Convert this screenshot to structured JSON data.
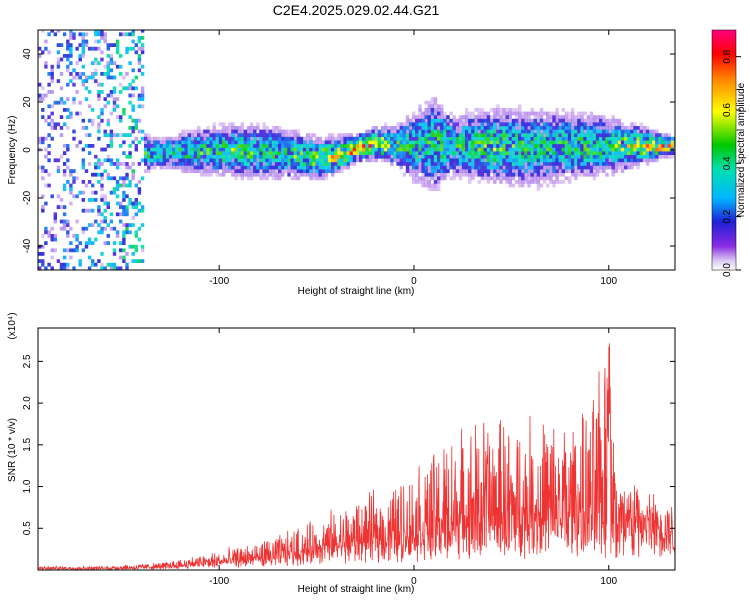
{
  "figure_title": "C2E4.2025.029.02.44.G21",
  "chart_data": [
    {
      "type": "heatmap",
      "xlabel": "Height of straight line (km)",
      "ylabel": "Frequency (Hz)",
      "xlim": [
        -193,
        134
      ],
      "ylim": [
        -50,
        50
      ],
      "x_ticks": [
        -100,
        0,
        100
      ],
      "y_ticks": [
        -40,
        -20,
        0,
        20,
        40
      ],
      "colorbar": {
        "label": "Normalized spectral amplitude",
        "range": [
          0.0,
          0.9
        ],
        "ticks": [
          0.0,
          0.2,
          0.4,
          0.6,
          0.8
        ]
      },
      "ridge_profile": {
        "x": [
          -193,
          -170,
          -150,
          -130,
          -110,
          -90,
          -70,
          -50,
          -40,
          -30,
          -20,
          -10,
          0,
          10,
          20,
          40,
          60,
          80,
          100,
          120,
          134
        ],
        "center_freq_hz": [
          0,
          -1,
          -2,
          -2,
          -1,
          -1,
          -2,
          -4,
          -3,
          0,
          2,
          1,
          1,
          2,
          1,
          1,
          0,
          1,
          1,
          1,
          1
        ],
        "half_width_hz": [
          45,
          30,
          8,
          6,
          9,
          10,
          10,
          8,
          7,
          5,
          6,
          8,
          14,
          18,
          12,
          14,
          15,
          13,
          11,
          6,
          3
        ],
        "peak_amplitude": [
          0.25,
          0.35,
          0.5,
          0.45,
          0.5,
          0.55,
          0.45,
          0.6,
          0.7,
          0.85,
          0.75,
          0.5,
          0.45,
          0.5,
          0.45,
          0.55,
          0.45,
          0.5,
          0.5,
          0.75,
          0.8
        ]
      }
    },
    {
      "type": "line",
      "xlabel": "Height of straight line (km)",
      "ylabel": "SNR (10 * v/v)",
      "y_scale_label": "(x10⁴)",
      "xlim": [
        -193,
        134
      ],
      "ylim": [
        0.0,
        2.9
      ],
      "x_ticks": [
        -100,
        0,
        100
      ],
      "y_ticks": [
        0.5,
        1.0,
        1.5,
        2.0,
        2.5
      ],
      "series": [
        {
          "x": [
            -193,
            -160,
            -130,
            -110,
            -90,
            -70,
            -55,
            -40,
            -30,
            -20,
            -10,
            0,
            10,
            20,
            30,
            40,
            50,
            60,
            70,
            80,
            90,
            100,
            105,
            110,
            120,
            134
          ],
          "baseline": [
            0.02,
            0.02,
            0.04,
            0.08,
            0.12,
            0.18,
            0.25,
            0.3,
            0.35,
            0.38,
            0.4,
            0.42,
            0.45,
            0.5,
            0.55,
            0.6,
            0.6,
            0.6,
            0.6,
            0.6,
            0.6,
            0.6,
            0.55,
            0.6,
            0.68,
            0.72
          ],
          "envelope": [
            0.05,
            0.05,
            0.1,
            0.2,
            0.3,
            0.45,
            0.6,
            0.8,
            0.9,
            1.0,
            1.1,
            1.3,
            1.5,
            1.8,
            1.9,
            2.0,
            1.9,
            1.95,
            2.0,
            1.9,
            2.0,
            2.9,
            1.3,
            1.3,
            1.1,
            0.8
          ]
        }
      ]
    }
  ]
}
